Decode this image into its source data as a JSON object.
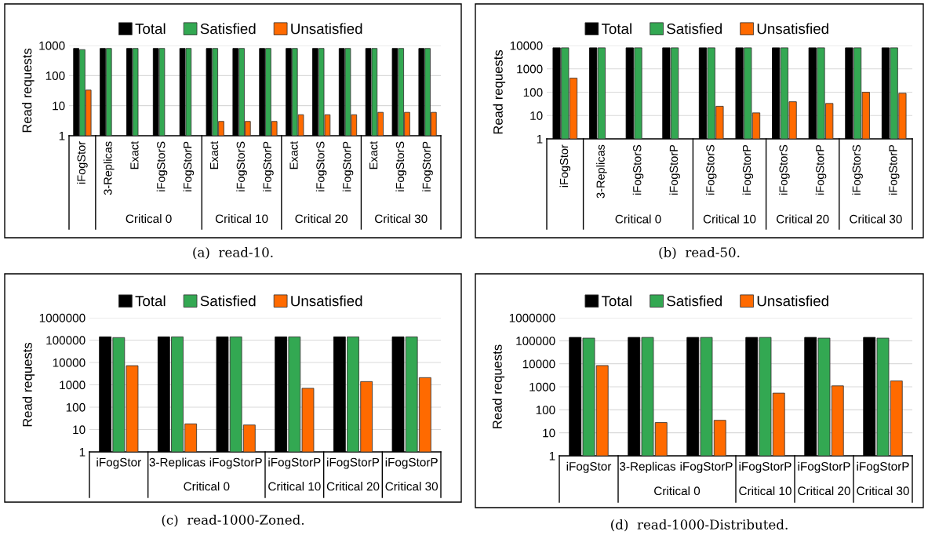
{
  "chart_data": [
    {
      "type": "bar",
      "title": "(a)  read-10.",
      "ylabel": "Read requests",
      "log": true,
      "grid": "y",
      "legend": "top",
      "categories": [
        "iFogStor",
        "3-Replicas",
        "Exact",
        "iFogStorS",
        "iFogStorP",
        "Exact",
        "iFogStorS",
        "iFogStorP",
        "Exact",
        "iFogStorS",
        "iFogStorP",
        "Exact",
        "iFogStorS",
        "iFogStorP"
      ],
      "annotations": [
        "Critical 0",
        "Critical 10",
        "Critical 20",
        "Critical 30"
      ],
      "ylim": [
        1,
        1000
      ],
      "yticks": [
        1,
        10,
        100,
        1000
      ],
      "series": [
        {
          "name": "Total",
          "color": "#000000",
          "values": [
            800,
            800,
            800,
            800,
            800,
            800,
            800,
            800,
            800,
            800,
            800,
            800,
            800,
            800
          ]
        },
        {
          "name": "Satisfied",
          "color": "#33a852",
          "values": [
            730,
            800,
            800,
            800,
            800,
            800,
            800,
            800,
            800,
            800,
            800,
            800,
            800,
            800
          ]
        },
        {
          "name": "Unsatisfied",
          "color": "#ff6a00",
          "values": [
            33,
            null,
            null,
            null,
            null,
            3,
            3,
            3,
            5,
            5,
            5,
            6,
            6,
            6
          ]
        }
      ]
    },
    {
      "type": "bar",
      "title": "(b)  read-50.",
      "ylabel": "Read requests",
      "log": true,
      "grid": "y",
      "legend": "top",
      "categories": [
        "iFogStor",
        "3-Replicas",
        "iFogStorS",
        "iFogStorP",
        "iFogStorS",
        "iFogStorP",
        "iFogStorS",
        "iFogStorP",
        "iFogStorS",
        "iFogStorP"
      ],
      "annotations": [
        "Critical 0",
        "Critical 10",
        "Critical 20",
        "Critical 30"
      ],
      "ylim": [
        1,
        10000
      ],
      "yticks": [
        1,
        10,
        100,
        1000,
        10000
      ],
      "series": [
        {
          "name": "Total",
          "color": "#000000",
          "values": [
            8000,
            8000,
            8000,
            8000,
            8000,
            8000,
            8000,
            8000,
            8000,
            8000
          ]
        },
        {
          "name": "Satisfied",
          "color": "#33a852",
          "values": [
            8000,
            8000,
            8000,
            8000,
            8000,
            8000,
            8000,
            8000,
            8000,
            8000
          ]
        },
        {
          "name": "Unsatisfied",
          "color": "#ff6a00",
          "values": [
            400,
            null,
            null,
            null,
            25,
            13,
            39,
            33,
            100,
            90
          ]
        }
      ]
    },
    {
      "type": "bar",
      "title": "(c)  read-1000-Zoned.",
      "ylabel": "Read requests",
      "log": true,
      "grid": "y",
      "legend": "top",
      "categories": [
        "iFogStor",
        "3-Replicas",
        "iFogStorP",
        "iFogStorP",
        "iFogStorP",
        "iFogStorP"
      ],
      "annotations": [
        "Critical 0",
        "Critical 10",
        "Critical 20",
        "Critical 30"
      ],
      "ylim": [
        1,
        1000000
      ],
      "yticks": [
        1,
        10,
        100,
        1000,
        10000,
        100000,
        1000000
      ],
      "series": [
        {
          "name": "Total",
          "color": "#000000",
          "values": [
            140000,
            140000,
            140000,
            140000,
            140000,
            140000
          ]
        },
        {
          "name": "Satisfied",
          "color": "#33a852",
          "values": [
            130000,
            140000,
            140000,
            140000,
            140000,
            140000
          ]
        },
        {
          "name": "Unsatisfied",
          "color": "#ff6a00",
          "values": [
            7200,
            18,
            16,
            700,
            1400,
            2100
          ]
        }
      ]
    },
    {
      "type": "bar",
      "title": "(d)  read-1000-Distributed.",
      "ylabel": "Read requests",
      "log": true,
      "grid": "y",
      "legend": "top",
      "categories": [
        "iFogStor",
        "3-Replicas",
        "iFogStorP",
        "iFogStorP",
        "iFogStorP",
        "iFogStorP"
      ],
      "annotations": [
        "Critical 0",
        "Critical 10",
        "Critical 20",
        "Critical 30"
      ],
      "ylim": [
        1,
        1000000
      ],
      "yticks": [
        1,
        10,
        100,
        1000,
        10000,
        100000,
        1000000
      ],
      "series": [
        {
          "name": "Total",
          "color": "#000000",
          "values": [
            140000,
            140000,
            140000,
            140000,
            140000,
            140000
          ]
        },
        {
          "name": "Satisfied",
          "color": "#33a852",
          "values": [
            130000,
            140000,
            140000,
            140000,
            130000,
            130000
          ]
        },
        {
          "name": "Unsatisfied",
          "color": "#ff6a00",
          "values": [
            8400,
            28,
            35,
            530,
            1100,
            1800
          ]
        }
      ]
    }
  ]
}
